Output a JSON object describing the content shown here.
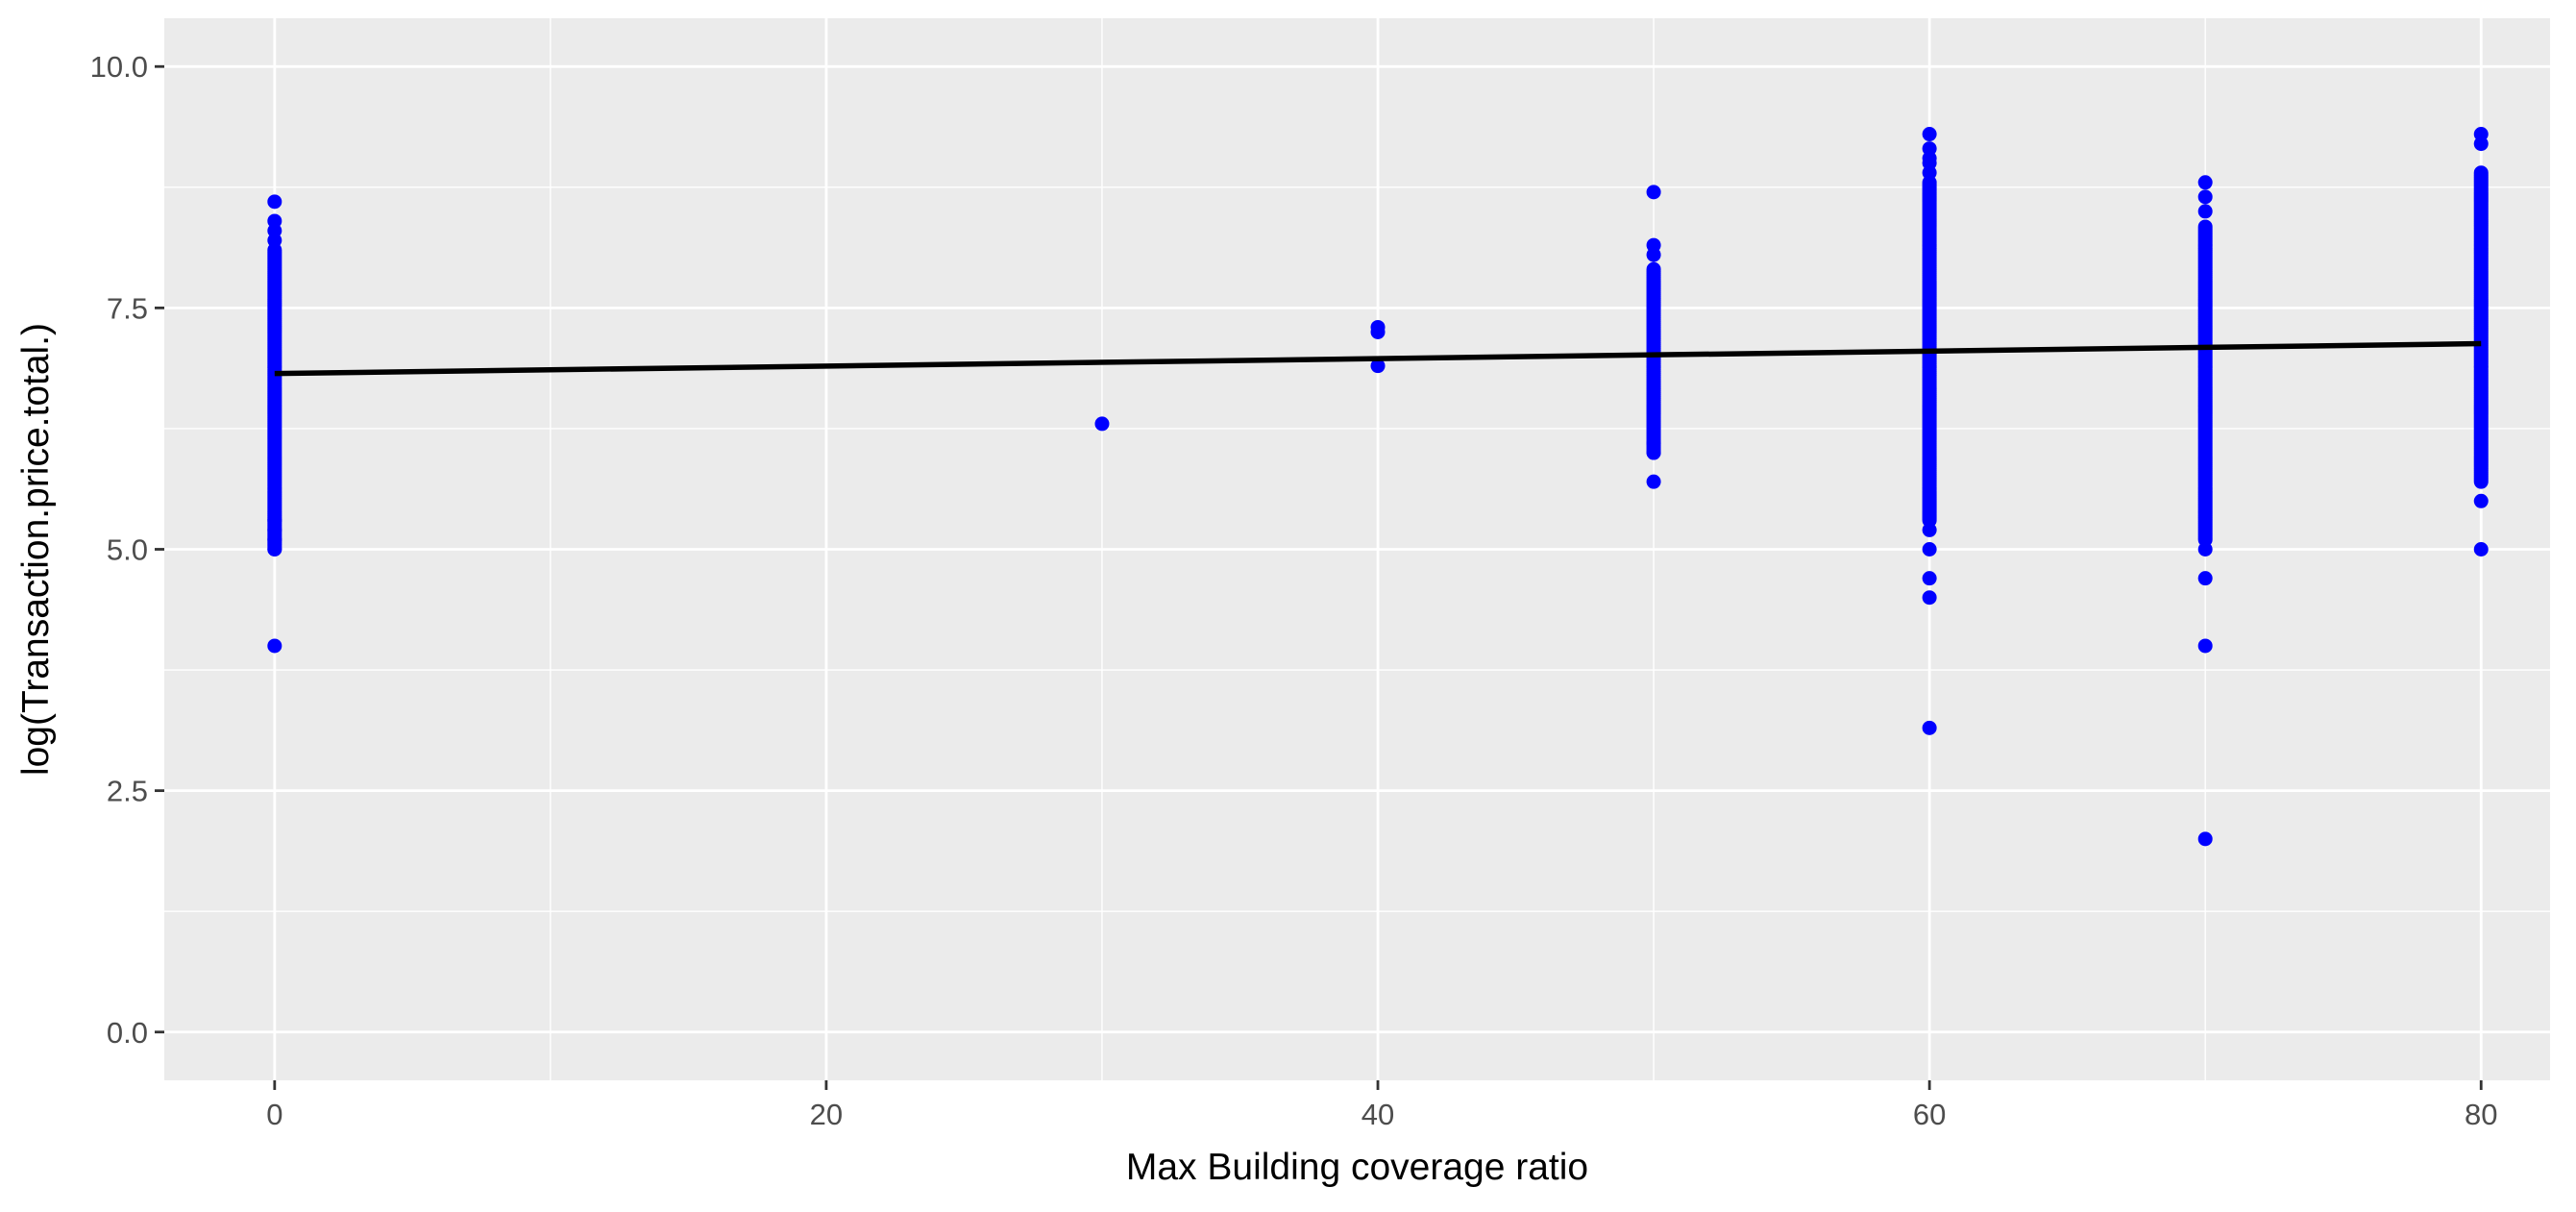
{
  "chart_data": {
    "type": "scatter",
    "title": "",
    "xlabel": "Max Building coverage ratio",
    "ylabel": "log(Transaction.price.total.)",
    "xlim": [
      -4,
      82.5
    ],
    "ylim": [
      -0.5,
      10.5
    ],
    "x_ticks": [
      0,
      20,
      40,
      60,
      80
    ],
    "y_ticks": [
      0.0,
      2.5,
      5.0,
      7.5,
      10.0
    ],
    "x_tick_labels": [
      "0",
      "20",
      "40",
      "60",
      "80"
    ],
    "y_tick_labels": [
      "0.0",
      "2.5",
      "5.0",
      "7.5",
      "10.0"
    ],
    "grid": true,
    "legend": "none",
    "point_color": "#0000ff",
    "line_color": "#000000",
    "panel_background": "#ebebeb",
    "gridline_color": "#ffffff",
    "series": [
      {
        "type": "scatter",
        "points_columns": [
          {
            "x": 0,
            "y_ranges": [
              [
                5.0,
                8.1
              ]
            ],
            "y_points": [
              4.0,
              5.0,
              5.1,
              5.2,
              5.3,
              8.2,
              8.3,
              8.4,
              8.6
            ]
          },
          {
            "x": 30,
            "y_ranges": [],
            "y_points": [
              6.3
            ]
          },
          {
            "x": 40,
            "y_ranges": [],
            "y_points": [
              6.9,
              7.25,
              7.3
            ]
          },
          {
            "x": 50,
            "y_ranges": [
              [
                6.0,
                7.9
              ]
            ],
            "y_points": [
              5.7,
              6.0,
              6.1,
              8.05,
              8.15,
              8.7
            ]
          },
          {
            "x": 60,
            "y_ranges": [
              [
                5.3,
                8.8
              ]
            ],
            "y_points": [
              3.15,
              4.5,
              4.7,
              5.0,
              5.2,
              8.9,
              9.0,
              9.05,
              9.15,
              9.3
            ]
          },
          {
            "x": 70,
            "y_ranges": [
              [
                5.1,
                8.35
              ]
            ],
            "y_points": [
              2.0,
              4.0,
              4.7,
              5.0,
              8.5,
              8.65,
              8.8
            ]
          },
          {
            "x": 80,
            "y_ranges": [
              [
                5.7,
                8.9
              ]
            ],
            "y_points": [
              5.0,
              5.5,
              9.2,
              9.3
            ]
          }
        ]
      },
      {
        "type": "line",
        "x": [
          0,
          80
        ],
        "y": [
          6.82,
          7.13
        ]
      }
    ]
  }
}
